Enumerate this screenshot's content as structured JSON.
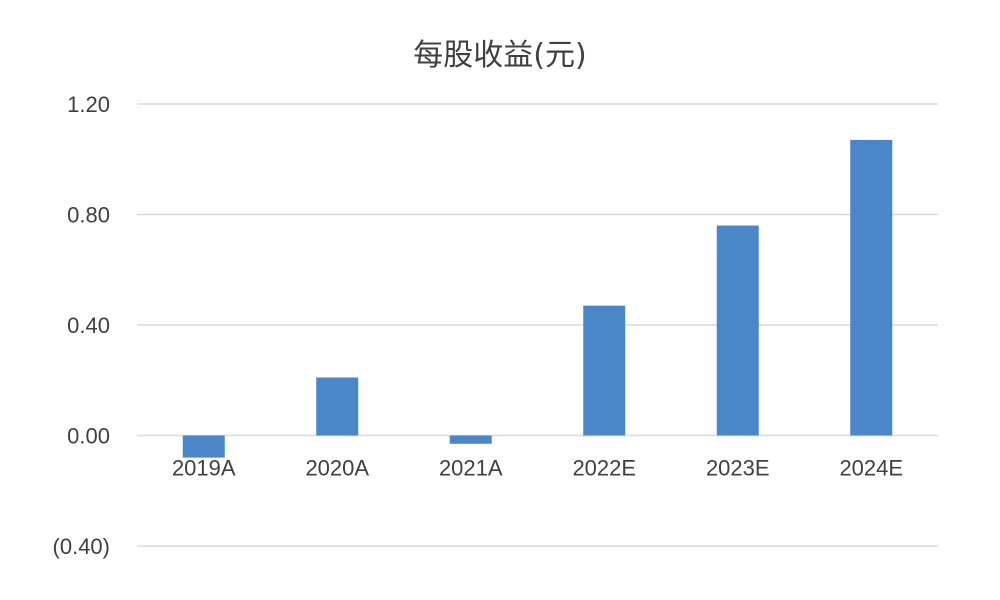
{
  "chart_data": {
    "type": "bar",
    "title": "每股收益(元)",
    "xlabel": "",
    "ylabel": "",
    "categories": [
      "2019A",
      "2020A",
      "2021A",
      "2022E",
      "2023E",
      "2024E"
    ],
    "values": [
      -0.08,
      0.21,
      -0.03,
      0.47,
      0.76,
      1.07
    ],
    "ylim": [
      -0.4,
      1.2
    ],
    "yticks": [
      1.2,
      0.8,
      0.4,
      0.0,
      -0.4
    ],
    "ytick_labels": [
      "1.20",
      "0.80",
      "0.40",
      "0.00",
      "(0.40)"
    ],
    "grid": true,
    "legend": "none",
    "colors": {
      "bar": "#4a86c8",
      "grid": "#d9d9d9",
      "text": "#404040",
      "negative_label": "#e00000"
    }
  }
}
